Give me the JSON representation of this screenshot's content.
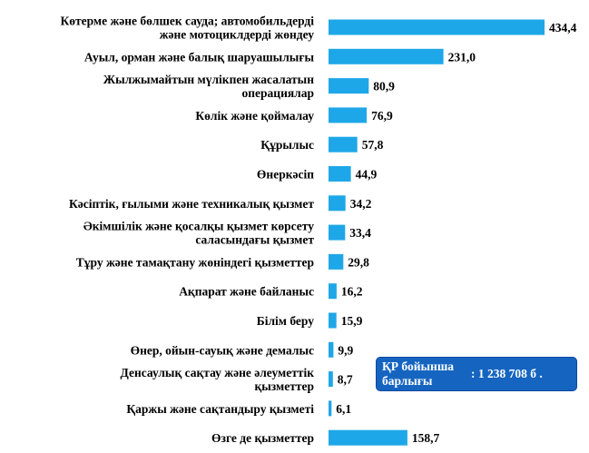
{
  "chart_data": {
    "type": "bar",
    "orientation": "horizontal",
    "categories": [
      [
        "Көтерме және бөлшек сауда; автомобильдерді",
        "және мотоциклдерді жөндеу"
      ],
      [
        "Ауыл, орман және балық шаруашылығы"
      ],
      [
        "Жылжымайтын мүлікпен жасалатын",
        "операциялар"
      ],
      [
        "Көлік және қоймалау"
      ],
      [
        "Құрылыс"
      ],
      [
        "Өнеркәсіп"
      ],
      [
        "Кәсіптік, ғылыми және техникалық қызмет"
      ],
      [
        "Әкімшілік және қосалқы қызмет көрсету",
        "саласындағы қызмет"
      ],
      [
        "Тұру және тамақтану жөніндегі қызметтер"
      ],
      [
        "Ақпарат және байланыс"
      ],
      [
        "Білім беру"
      ],
      [
        "Өнер, ойын-сауық және демалыс"
      ],
      [
        "Денсаулық сақтау және әлеуметтік",
        "қызметтер"
      ],
      [
        "Қаржы және сақтандыру қызметі"
      ],
      [
        "Өзге де қызметтер"
      ]
    ],
    "values": [
      434.4,
      231.0,
      80.9,
      76.9,
      57.8,
      44.9,
      34.2,
      33.4,
      29.8,
      16.2,
      15.9,
      9.9,
      8.7,
      6.1,
      158.7
    ],
    "value_labels": [
      "434,4",
      "231,0",
      "80,9",
      "76,9",
      "57,8",
      "44,9",
      "34,2",
      "33,4",
      "29,8",
      "16,2",
      "15,9",
      "9,9",
      "8,7",
      "6,1",
      "158,7"
    ],
    "bar_color": "#1ea7e8",
    "xlim": [
      0,
      434.4
    ],
    "grid": false,
    "legend": "none"
  },
  "total_box": {
    "label_line1": "ҚР бойынша",
    "label_line2": "барлығы",
    "value": ": 1 238 708 б ."
  },
  "colors": {
    "box_bg": "#1565c0",
    "box_text": "#ffffff"
  }
}
